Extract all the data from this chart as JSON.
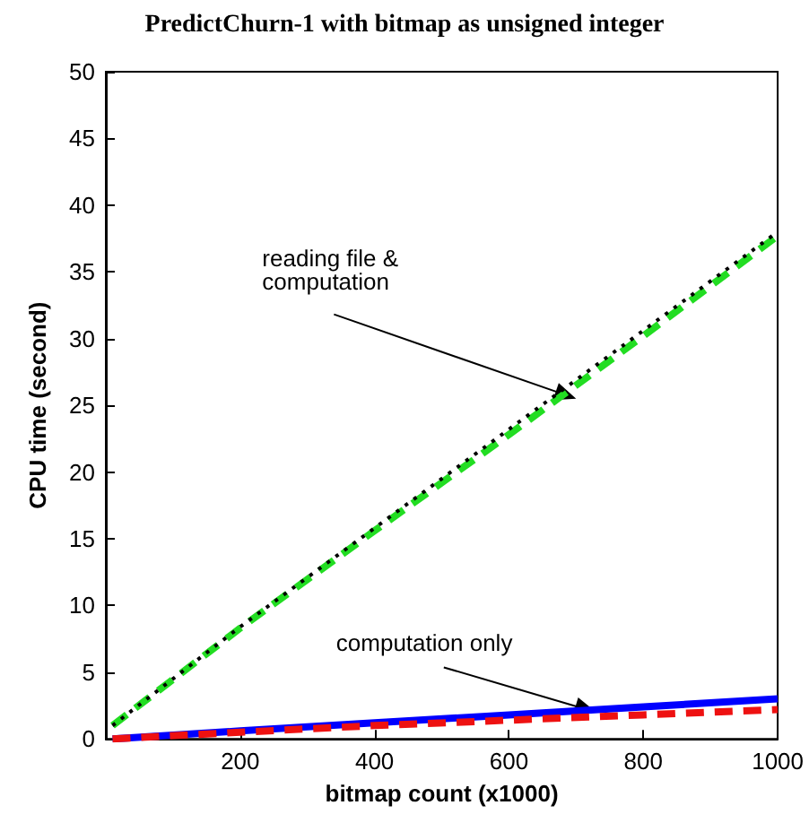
{
  "chart_data": {
    "type": "line",
    "title": "PredictChurn-1 with bitmap as unsigned integer",
    "xlabel": "bitmap count (x1000)",
    "ylabel": "CPU time (second)",
    "xlim": [
      0,
      1000
    ],
    "xticks": [
      200,
      400,
      600,
      800,
      1000
    ],
    "ylim": [
      0,
      50
    ],
    "yticks": [
      0,
      5,
      10,
      15,
      20,
      25,
      30,
      35,
      40,
      45,
      50
    ],
    "grid": false,
    "marker": "none",
    "series": [
      {
        "color": "#22dd22",
        "line_style": "dashed",
        "x": [
          10,
          200,
          400,
          600,
          800,
          1000
        ],
        "values": [
          1,
          8.3,
          15.6,
          22.8,
          30.2,
          37.7
        ]
      },
      {
        "color": "#000000",
        "line_style": "dotted",
        "x": [
          10,
          200,
          400,
          600,
          800,
          1000
        ],
        "values": [
          1,
          8.4,
          15.8,
          23.2,
          30.6,
          38
        ]
      },
      {
        "color": "#0000ff",
        "line_style": "solid",
        "x": [
          10,
          200,
          400,
          600,
          800,
          1000
        ],
        "values": [
          0,
          0.6,
          1.2,
          1.8,
          2.4,
          3
        ]
      },
      {
        "color": "#ee1111",
        "line_style": "dashed",
        "x": [
          10,
          200,
          400,
          600,
          800,
          1000
        ],
        "values": [
          0,
          0.5,
          1,
          1.4,
          1.8,
          2.2
        ]
      }
    ],
    "annotations": [
      {
        "text": "reading file & computation",
        "x": 700,
        "y": 25.5
      },
      {
        "text": "computation only",
        "x": 730,
        "y": 2
      }
    ]
  }
}
